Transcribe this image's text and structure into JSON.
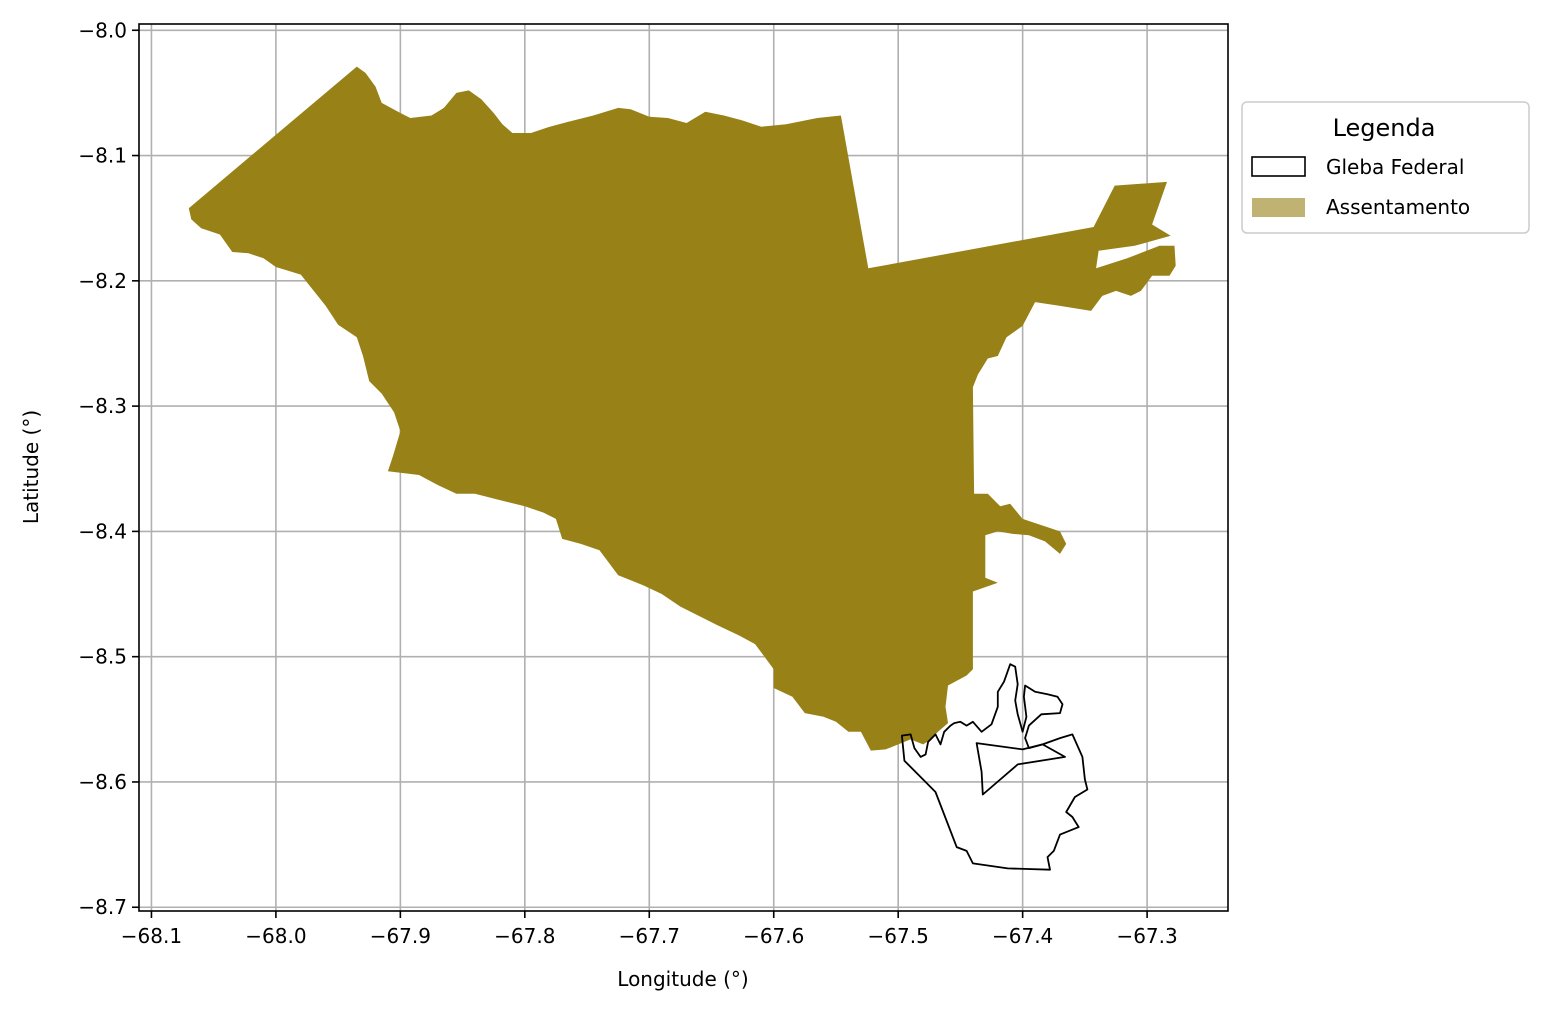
{
  "chart_data": {
    "type": "map",
    "title": "",
    "xlabel": "Longitude (°)",
    "ylabel": "Latitude (°)",
    "xlim": [
      -68.11,
      -67.235
    ],
    "ylim": [
      -8.703,
      -7.995
    ],
    "xticks": [
      -68.1,
      -68.0,
      -67.9,
      -67.8,
      -67.7,
      -67.6,
      -67.5,
      -67.4,
      -67.3
    ],
    "xtick_labels": [
      "−68.1",
      "−68.0",
      "−67.9",
      "−67.8",
      "−67.7",
      "−67.6",
      "−67.5",
      "−67.4",
      "−67.3"
    ],
    "yticks": [
      -8.0,
      -8.1,
      -8.2,
      -8.3,
      -8.4,
      -8.5,
      -8.6,
      -8.7
    ],
    "ytick_labels": [
      "−8.0",
      "−8.1",
      "−8.2",
      "−8.3",
      "−8.4",
      "−8.5",
      "−8.6",
      "−8.7"
    ],
    "grid": true,
    "legend_position": "outside-right-top",
    "legend": {
      "title": "Legenda",
      "entries": [
        {
          "label": "Gleba Federal",
          "style": "outline",
          "edge_color": "#000000",
          "face_color": "none"
        },
        {
          "label": "Assentamento",
          "style": "fill",
          "face_color": "#c0b272"
        }
      ]
    },
    "layers": [
      {
        "name": "Assentamento",
        "fill": "#988218",
        "coords": [
          [
            -68.07,
            -8.142
          ],
          [
            -67.935,
            -8.029
          ],
          [
            -67.928,
            -8.034
          ],
          [
            -67.92,
            -8.045
          ],
          [
            -67.915,
            -8.058
          ],
          [
            -67.9,
            -8.066
          ],
          [
            -67.892,
            -8.07
          ],
          [
            -67.875,
            -8.068
          ],
          [
            -67.865,
            -8.062
          ],
          [
            -67.855,
            -8.05
          ],
          [
            -67.845,
            -8.048
          ],
          [
            -67.835,
            -8.055
          ],
          [
            -67.825,
            -8.066
          ],
          [
            -67.818,
            -8.075
          ],
          [
            -67.81,
            -8.082
          ],
          [
            -67.795,
            -8.082
          ],
          [
            -67.78,
            -8.077
          ],
          [
            -67.765,
            -8.073
          ],
          [
            -67.745,
            -8.068
          ],
          [
            -67.725,
            -8.062
          ],
          [
            -67.715,
            -8.063
          ],
          [
            -67.7,
            -8.069
          ],
          [
            -67.685,
            -8.07
          ],
          [
            -67.67,
            -8.074
          ],
          [
            -67.655,
            -8.065
          ],
          [
            -67.64,
            -8.068
          ],
          [
            -67.625,
            -8.072
          ],
          [
            -67.61,
            -8.077
          ],
          [
            -67.59,
            -8.075
          ],
          [
            -67.565,
            -8.07
          ],
          [
            -67.546,
            -8.068
          ],
          [
            -67.524,
            -8.19
          ],
          [
            -67.343,
            -8.157
          ],
          [
            -67.326,
            -8.124
          ],
          [
            -67.284,
            -8.121
          ],
          [
            -67.296,
            -8.155
          ],
          [
            -67.281,
            -8.164
          ],
          [
            -67.31,
            -8.172
          ],
          [
            -67.339,
            -8.176
          ],
          [
            -67.341,
            -8.19
          ],
          [
            -67.316,
            -8.182
          ],
          [
            -67.29,
            -8.172
          ],
          [
            -67.278,
            -8.172
          ],
          [
            -67.277,
            -8.188
          ],
          [
            -67.282,
            -8.196
          ],
          [
            -67.296,
            -8.196
          ],
          [
            -67.305,
            -8.208
          ],
          [
            -67.313,
            -8.212
          ],
          [
            -67.325,
            -8.208
          ],
          [
            -67.336,
            -8.212
          ],
          [
            -67.345,
            -8.224
          ],
          [
            -67.37,
            -8.22
          ],
          [
            -67.39,
            -8.217
          ],
          [
            -67.4,
            -8.236
          ],
          [
            -67.413,
            -8.245
          ],
          [
            -67.42,
            -8.26
          ],
          [
            -67.428,
            -8.262
          ],
          [
            -67.436,
            -8.275
          ],
          [
            -67.44,
            -8.285
          ],
          [
            -67.439,
            -8.37
          ],
          [
            -67.428,
            -8.37
          ],
          [
            -67.418,
            -8.38
          ],
          [
            -67.41,
            -8.378
          ],
          [
            -67.4,
            -8.39
          ],
          [
            -67.385,
            -8.395
          ],
          [
            -67.37,
            -8.4
          ],
          [
            -67.365,
            -8.41
          ],
          [
            -67.37,
            -8.418
          ],
          [
            -67.382,
            -8.408
          ],
          [
            -67.395,
            -8.403
          ],
          [
            -67.408,
            -8.402
          ],
          [
            -67.42,
            -8.4
          ],
          [
            -67.43,
            -8.403
          ],
          [
            -67.43,
            -8.437
          ],
          [
            -67.42,
            -8.441
          ],
          [
            -67.44,
            -8.448
          ],
          [
            -67.44,
            -8.51
          ],
          [
            -67.445,
            -8.515
          ],
          [
            -67.46,
            -8.523
          ],
          [
            -67.462,
            -8.54
          ],
          [
            -67.46,
            -8.553
          ],
          [
            -67.468,
            -8.56
          ],
          [
            -67.475,
            -8.567
          ],
          [
            -67.48,
            -8.57
          ],
          [
            -67.485,
            -8.568
          ],
          [
            -67.49,
            -8.566
          ],
          [
            -67.5,
            -8.57
          ],
          [
            -67.51,
            -8.574
          ],
          [
            -67.522,
            -8.575
          ],
          [
            -67.53,
            -8.56
          ],
          [
            -67.54,
            -8.56
          ],
          [
            -67.55,
            -8.552
          ],
          [
            -67.56,
            -8.548
          ],
          [
            -67.575,
            -8.545
          ],
          [
            -67.585,
            -8.532
          ],
          [
            -67.6,
            -8.525
          ],
          [
            -67.6,
            -8.51
          ],
          [
            -67.615,
            -8.49
          ],
          [
            -67.628,
            -8.483
          ],
          [
            -67.645,
            -8.475
          ],
          [
            -67.655,
            -8.47
          ],
          [
            -67.675,
            -8.46
          ],
          [
            -67.69,
            -8.45
          ],
          [
            -67.705,
            -8.443
          ],
          [
            -67.725,
            -8.435
          ],
          [
            -67.74,
            -8.415
          ],
          [
            -67.755,
            -8.41
          ],
          [
            -67.77,
            -8.406
          ],
          [
            -67.775,
            -8.39
          ],
          [
            -67.785,
            -8.385
          ],
          [
            -67.8,
            -8.38
          ],
          [
            -67.82,
            -8.375
          ],
          [
            -67.84,
            -8.37
          ],
          [
            -67.855,
            -8.37
          ],
          [
            -67.87,
            -8.363
          ],
          [
            -67.885,
            -8.355
          ],
          [
            -67.91,
            -8.352
          ],
          [
            -67.906,
            -8.34
          ],
          [
            -67.9,
            -8.32
          ],
          [
            -67.905,
            -8.305
          ],
          [
            -67.915,
            -8.29
          ],
          [
            -67.925,
            -8.28
          ],
          [
            -67.93,
            -8.26
          ],
          [
            -67.935,
            -8.245
          ],
          [
            -67.95,
            -8.235
          ],
          [
            -67.96,
            -8.22
          ],
          [
            -67.98,
            -8.195
          ],
          [
            -68.0,
            -8.189
          ],
          [
            -68.01,
            -8.182
          ],
          [
            -68.022,
            -8.178
          ],
          [
            -68.035,
            -8.177
          ],
          [
            -68.045,
            -8.163
          ],
          [
            -68.06,
            -8.158
          ],
          [
            -68.068,
            -8.151
          ]
        ]
      },
      {
        "name": "Gleba Federal",
        "stroke": "#000000",
        "coords": [
          [
            -67.497,
            -8.563
          ],
          [
            -67.49,
            -8.562
          ],
          [
            -67.487,
            -8.573
          ],
          [
            -67.482,
            -8.58
          ],
          [
            -67.478,
            -8.578
          ],
          [
            -67.476,
            -8.568
          ],
          [
            -67.47,
            -8.562
          ],
          [
            -67.466,
            -8.57
          ],
          [
            -67.463,
            -8.56
          ],
          [
            -67.458,
            -8.555
          ],
          [
            -67.455,
            -8.553
          ],
          [
            -67.45,
            -8.552
          ],
          [
            -67.445,
            -8.555
          ],
          [
            -67.44,
            -8.552
          ],
          [
            -67.433,
            -8.56
          ],
          [
            -67.425,
            -8.554
          ],
          [
            -67.42,
            -8.54
          ],
          [
            -67.42,
            -8.528
          ],
          [
            -67.415,
            -8.52
          ],
          [
            -67.41,
            -8.506
          ],
          [
            -67.406,
            -8.508
          ],
          [
            -67.404,
            -8.522
          ],
          [
            -67.406,
            -8.535
          ],
          [
            -67.404,
            -8.546
          ],
          [
            -67.4,
            -8.56
          ],
          [
            -67.397,
            -8.548
          ],
          [
            -67.399,
            -8.532
          ],
          [
            -67.398,
            -8.523
          ],
          [
            -67.39,
            -8.528
          ],
          [
            -67.38,
            -8.53
          ],
          [
            -67.372,
            -8.532
          ],
          [
            -67.368,
            -8.538
          ],
          [
            -67.37,
            -8.545
          ],
          [
            -67.385,
            -8.546
          ],
          [
            -67.395,
            -8.555
          ],
          [
            -67.398,
            -8.565
          ],
          [
            -67.395,
            -8.573
          ],
          [
            -67.384,
            -8.57
          ],
          [
            -67.37,
            -8.565
          ],
          [
            -67.36,
            -8.562
          ],
          [
            -67.352,
            -8.58
          ],
          [
            -67.35,
            -8.598
          ],
          [
            -67.348,
            -8.606
          ],
          [
            -67.358,
            -8.612
          ],
          [
            -67.365,
            -8.624
          ],
          [
            -67.36,
            -8.628
          ],
          [
            -67.355,
            -8.636
          ],
          [
            -67.37,
            -8.642
          ],
          [
            -67.375,
            -8.655
          ],
          [
            -67.38,
            -8.66
          ],
          [
            -67.378,
            -8.67
          ],
          [
            -67.412,
            -8.669
          ],
          [
            -67.44,
            -8.665
          ],
          [
            -67.445,
            -8.655
          ],
          [
            -67.453,
            -8.652
          ],
          [
            -67.47,
            -8.608
          ],
          [
            -67.48,
            -8.598
          ],
          [
            -67.495,
            -8.583
          ],
          [
            -67.497,
            -8.563
          ]
        ]
      },
      {
        "name": "Gleba Federal",
        "stroke": "#000000",
        "coords": [
          [
            -67.437,
            -8.569
          ],
          [
            -67.4,
            -8.574
          ],
          [
            -67.384,
            -8.57
          ],
          [
            -67.366,
            -8.58
          ],
          [
            -67.404,
            -8.586
          ],
          [
            -67.432,
            -8.61
          ],
          [
            -67.433,
            -8.592
          ],
          [
            -67.437,
            -8.569
          ]
        ]
      }
    ]
  }
}
